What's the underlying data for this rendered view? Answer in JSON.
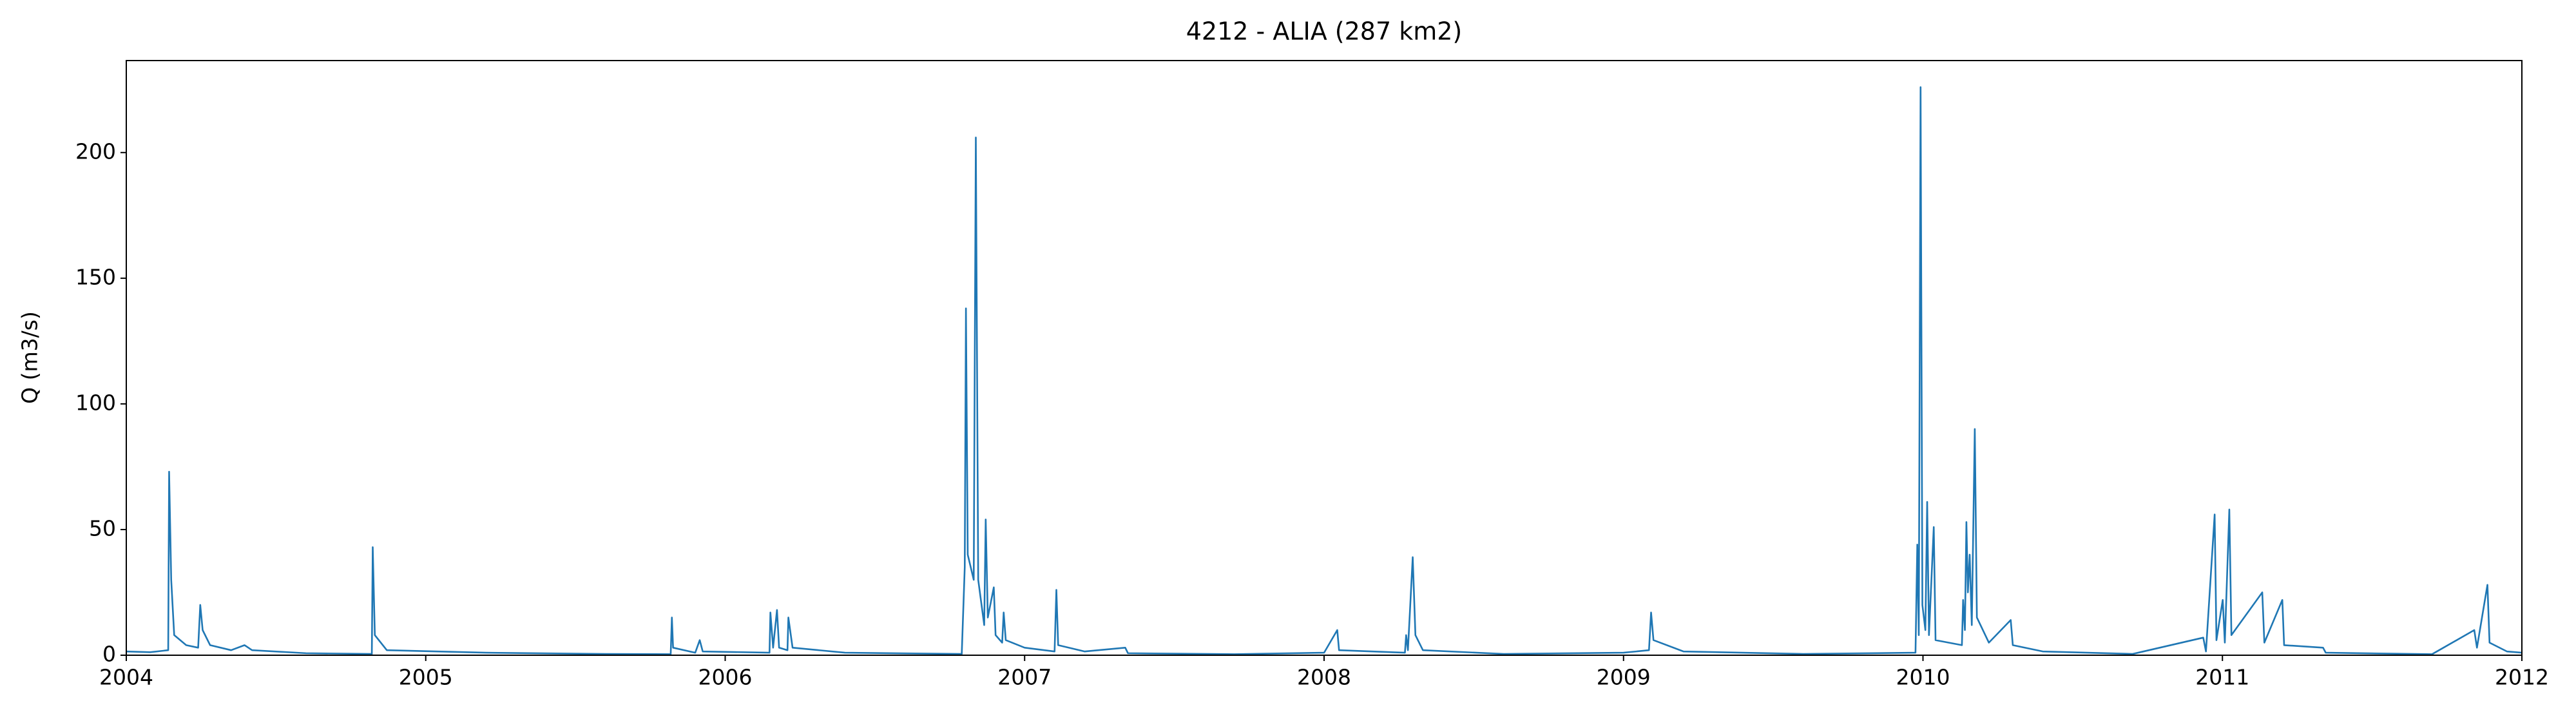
{
  "chart_data": {
    "type": "line",
    "title": "4212 - ALIA (287 km2)",
    "ylabel": "Q (m3/s)",
    "xlim": [
      2004,
      2012
    ],
    "xticks": [
      2004,
      2005,
      2006,
      2007,
      2008,
      2009,
      2010,
      2011,
      2012
    ],
    "ylim": [
      0,
      236.6
    ],
    "yticks": [
      0,
      50,
      100,
      150,
      200
    ],
    "grid": false,
    "series": [
      {
        "name": "Q",
        "color": "#1f77b4",
        "x": [
          2004.0,
          2004.08,
          2004.14,
          2004.143,
          2004.15,
          2004.16,
          2004.2,
          2004.24,
          2004.247,
          2004.255,
          2004.28,
          2004.35,
          2004.395,
          2004.42,
          2004.6,
          2004.82,
          2004.823,
          2004.83,
          2004.87,
          2005.2,
          2005.6,
          2005.818,
          2005.822,
          2005.826,
          2005.9,
          2005.915,
          2005.925,
          2006.148,
          2006.151,
          2006.16,
          2006.173,
          2006.18,
          2006.208,
          2006.211,
          2006.225,
          2006.4,
          2006.79,
          2006.8,
          2006.804,
          2006.81,
          2006.83,
          2006.837,
          2006.845,
          2006.865,
          2006.87,
          2006.877,
          2006.897,
          2006.903,
          2006.925,
          2006.93,
          2006.937,
          2007.0,
          2007.1,
          2007.106,
          2007.112,
          2007.2,
          2007.336,
          2007.345,
          2007.7,
          2008.0,
          2008.044,
          2008.05,
          2008.27,
          2008.274,
          2008.28,
          2008.296,
          2008.305,
          2008.33,
          2008.6,
          2009.0,
          2009.085,
          2009.092,
          2009.1,
          2009.2,
          2009.6,
          2009.975,
          2009.981,
          2009.986,
          2009.992,
          2009.998,
          2010.008,
          2010.014,
          2010.02,
          2010.036,
          2010.042,
          2010.13,
          2010.134,
          2010.14,
          2010.145,
          2010.15,
          2010.156,
          2010.163,
          2010.173,
          2010.18,
          2010.22,
          2010.293,
          2010.3,
          2010.4,
          2010.7,
          2010.936,
          2010.945,
          2010.974,
          2010.98,
          2011.001,
          2011.008,
          2011.023,
          2011.03,
          2011.133,
          2011.14,
          2011.2,
          2011.206,
          2011.336,
          2011.345,
          2011.7,
          2011.841,
          2011.85,
          2011.885,
          2011.892,
          2011.95,
          2012.0
        ],
        "values": [
          1.5,
          1.2,
          2,
          73,
          30,
          8,
          4,
          3,
          20,
          10,
          4,
          2,
          4,
          2,
          0.8,
          0.5,
          43,
          8,
          2,
          1,
          0.5,
          0.4,
          15,
          3,
          1,
          6,
          1.5,
          1,
          17,
          3,
          18,
          3,
          2,
          15,
          3,
          1,
          0.5,
          35,
          138,
          40,
          30,
          206,
          30,
          12,
          54,
          15,
          27,
          8,
          5,
          17,
          6,
          3,
          1.5,
          26,
          4,
          1.5,
          3,
          0.8,
          0.4,
          1,
          10,
          2,
          1,
          8,
          2,
          39,
          8,
          2,
          0.5,
          1,
          2,
          17,
          6,
          1.5,
          0.5,
          1,
          44,
          8,
          226,
          20,
          10,
          61,
          8,
          51,
          6,
          4,
          22,
          10,
          53,
          25,
          40,
          12,
          90,
          15,
          5,
          14,
          4,
          1.5,
          0.5,
          7,
          1.5,
          56,
          6,
          22,
          5,
          58,
          8,
          25,
          5,
          22,
          4,
          3,
          1,
          0.4,
          10,
          3,
          28,
          5,
          1.5,
          1
        ]
      }
    ]
  }
}
